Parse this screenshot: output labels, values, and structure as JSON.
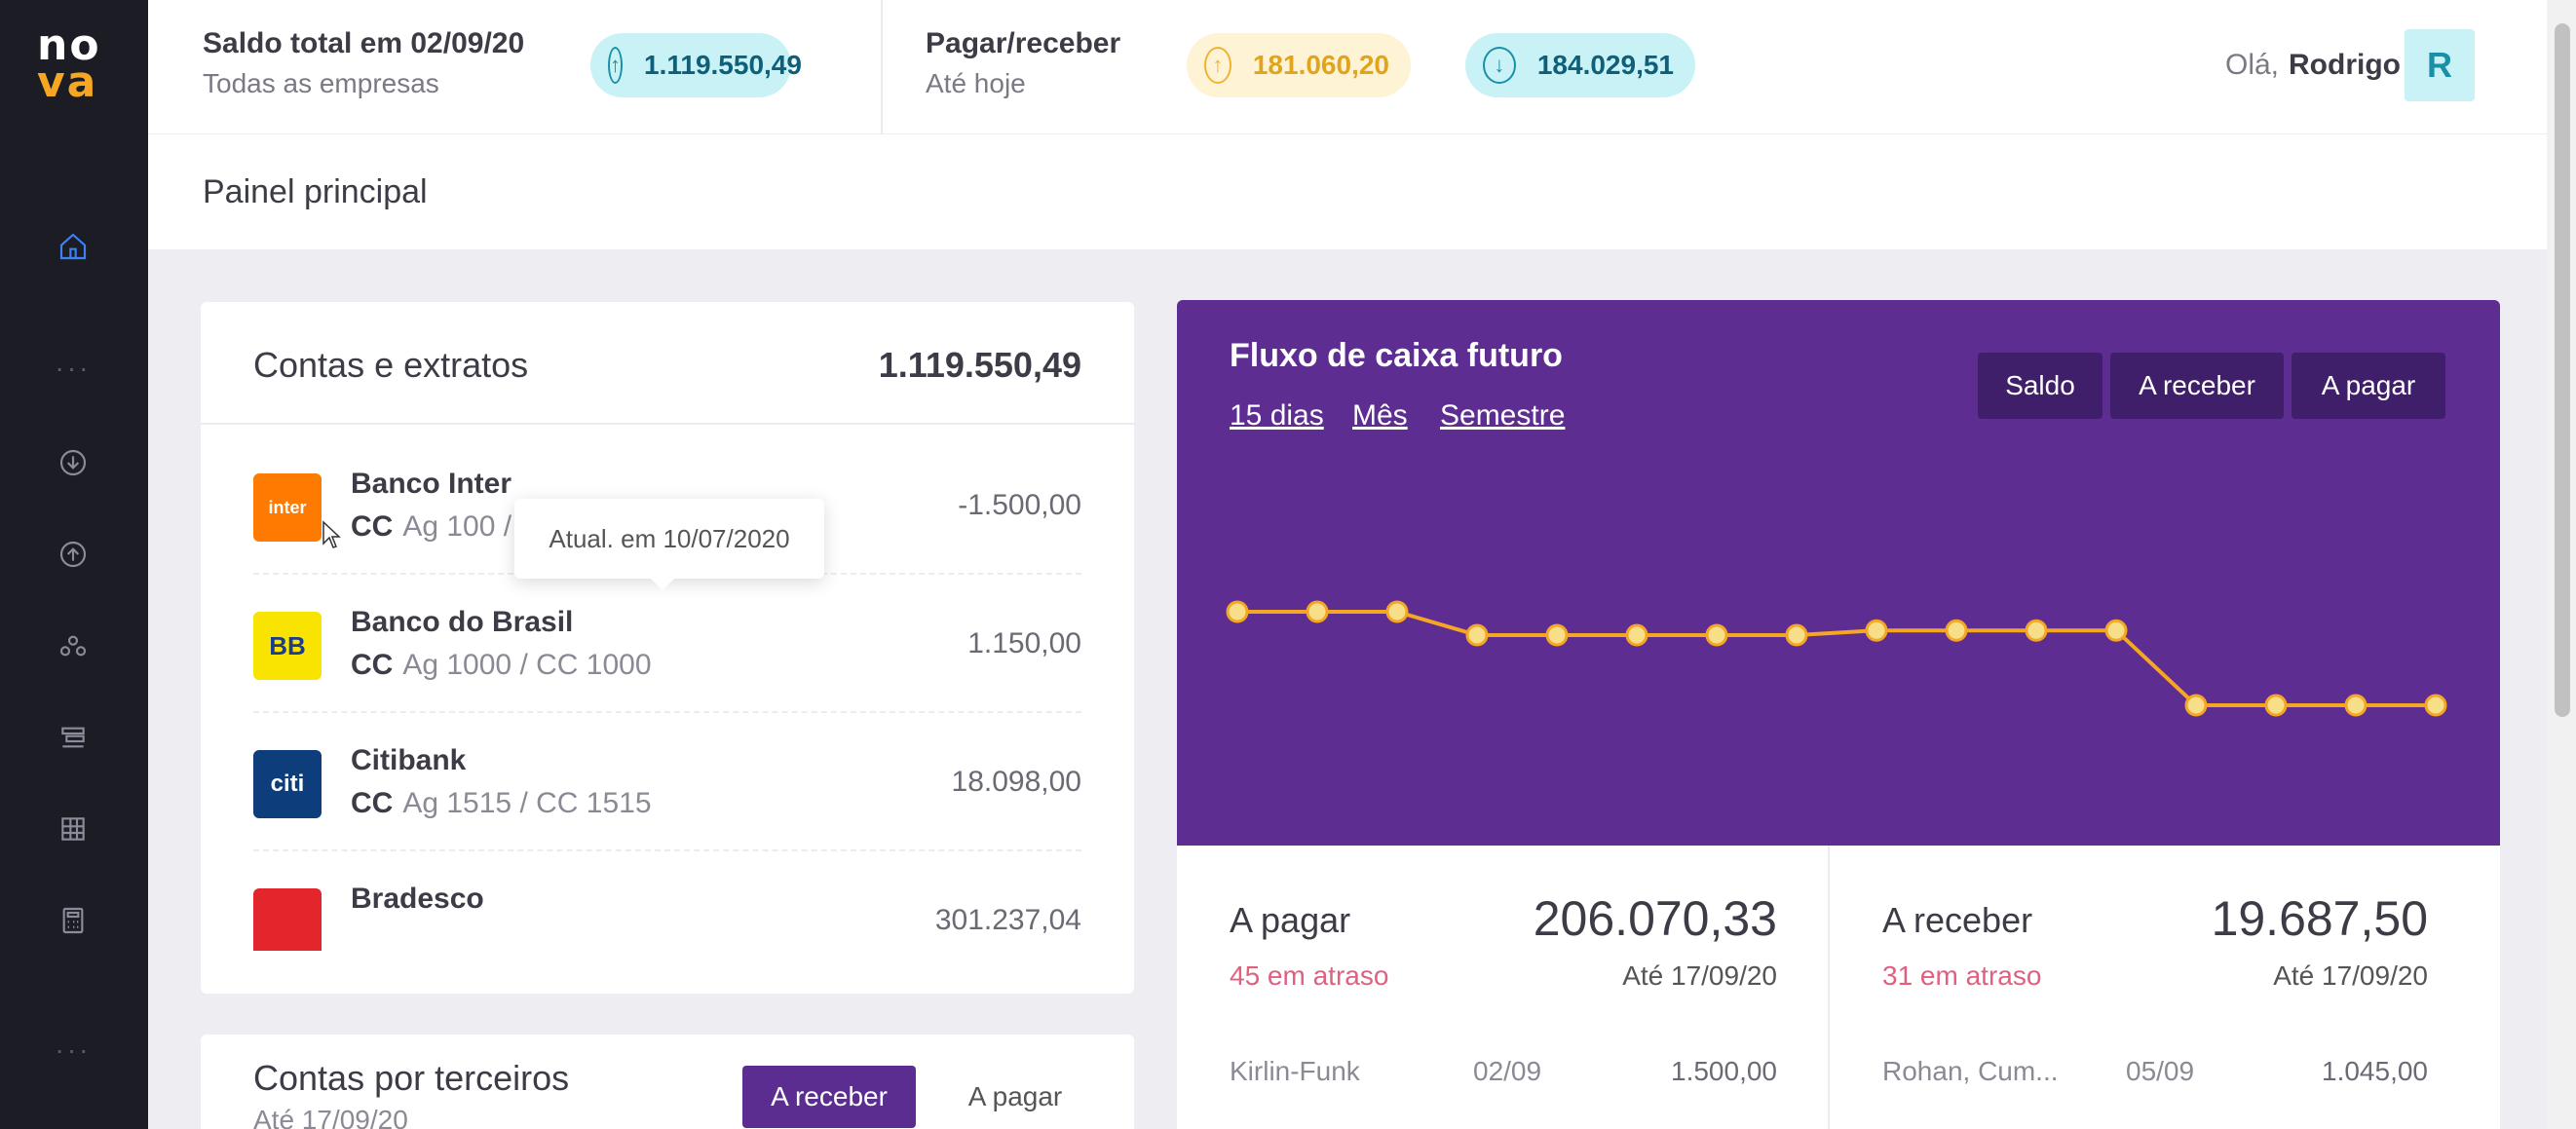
{
  "brand": {
    "logo_line1": "no",
    "logo_line2": "va"
  },
  "header": {
    "saldo_title": "Saldo total em 02/09/20",
    "saldo_sub": "Todas as empresas",
    "saldo_value": "1.119.550,49",
    "pagar_title": "Pagar/receber",
    "pagar_sub": "Até hoje",
    "receber_value": "181.060,20",
    "pagar_value": "184.029,51",
    "greeting": "Olá,",
    "user_name": "Rodrigo",
    "avatar_initial": "R"
  },
  "page": {
    "title": "Painel principal"
  },
  "contas": {
    "title": "Contas e extratos",
    "total": "1.119.550,49",
    "banks": [
      {
        "name": "Banco Inter",
        "type": "CC",
        "details": "Ag 100 / CC 100",
        "value": "-1.500,00",
        "logo_text": "inter",
        "logo_color": "#ff7a00"
      },
      {
        "name": "Banco do Brasil",
        "type": "CC",
        "details": "Ag 1000 / CC 1000",
        "value": "1.150,00",
        "logo_text": "BB",
        "logo_color": "#f9e300"
      },
      {
        "name": "Citibank",
        "type": "CC",
        "details": "Ag 1515 / CC 1515",
        "value": "18.098,00",
        "logo_text": "citi",
        "logo_color": "#0d3d7a"
      },
      {
        "name": "Bradesco",
        "type": "",
        "details": "",
        "value": "301.237,04",
        "logo_text": "",
        "logo_color": "#e3262b"
      }
    ],
    "tooltip": "Atual. em 10/07/2020"
  },
  "terceiros": {
    "title": "Contas por terceiros",
    "sub": "Até 17/09/20",
    "btn_receber": "A receber",
    "btn_pagar": "A pagar"
  },
  "fluxo": {
    "title": "Fluxo de caixa futuro",
    "periods": [
      "15 dias",
      "Mês",
      "Semestre"
    ],
    "buttons": [
      "Saldo",
      "A receber",
      "A pagar"
    ]
  },
  "chart_data": {
    "type": "line",
    "series": [
      {
        "values": [
          4,
          4,
          4,
          3,
          3,
          3,
          3,
          3,
          3.2,
          3.2,
          3.2,
          3.2,
          0,
          0,
          0,
          0
        ]
      }
    ],
    "line_color": "#f5a623",
    "point_color": "#f7df8a"
  },
  "summary": {
    "pagar": {
      "label": "A pagar",
      "amount": "206.070,33",
      "late": "45 em atraso",
      "date": "Até 17/09/20",
      "row": {
        "name": "Kirlin-Funk",
        "date": "02/09",
        "value": "1.500,00"
      }
    },
    "receber": {
      "label": "A receber",
      "amount": "19.687,50",
      "late": "31 em atraso",
      "date": "Até 17/09/20",
      "row": {
        "name": "Rohan, Cum...",
        "date": "05/09",
        "value": "1.045,00"
      }
    }
  }
}
